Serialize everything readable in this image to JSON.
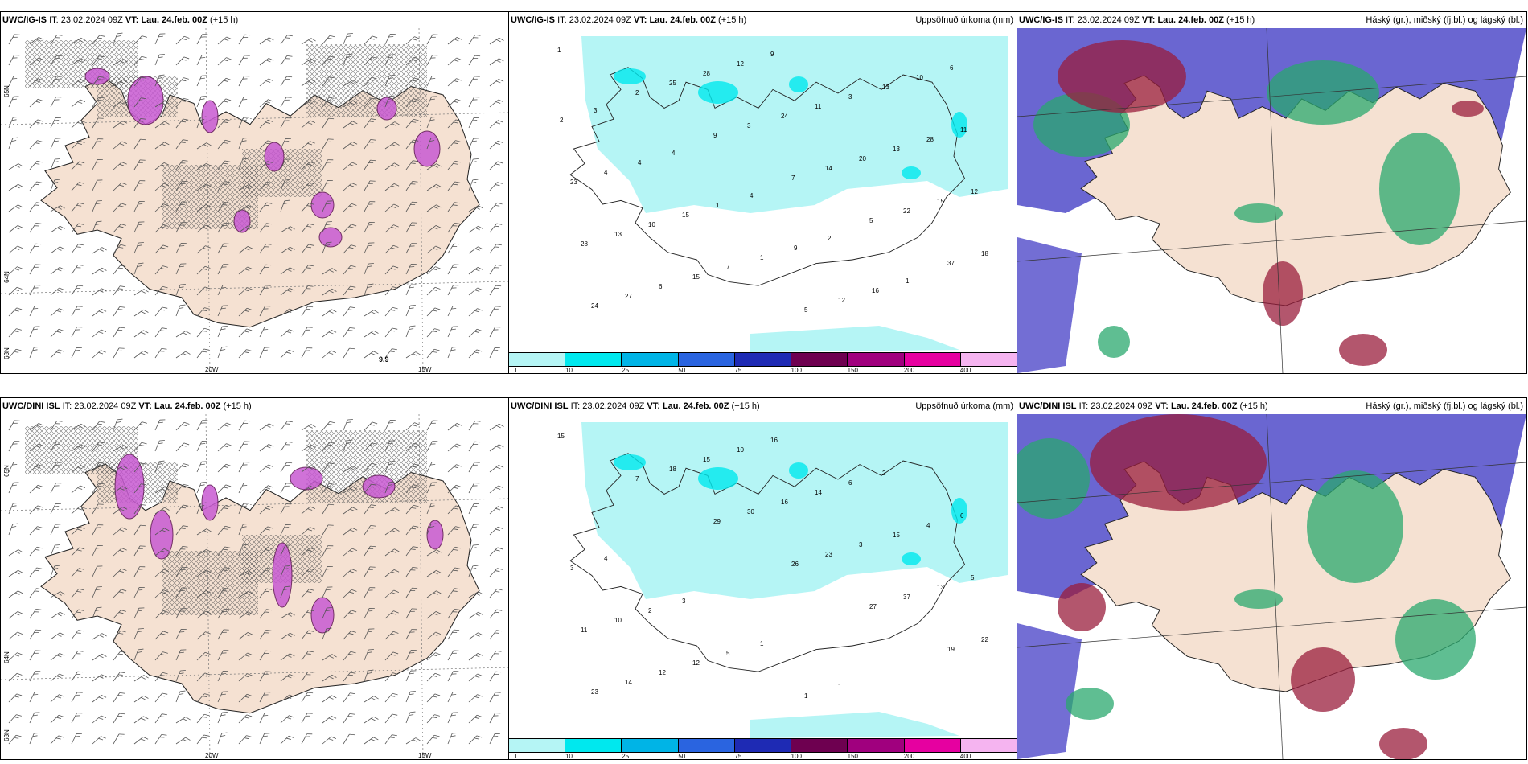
{
  "rows": [
    {
      "model": "UWC/IG-IS",
      "it_label": "IT:",
      "it": "23.02.2024 09Z",
      "vt_label": "VT:",
      "vt": "Lau. 24.feb. 00Z",
      "lead": "(+15 h)"
    },
    {
      "model": "UWC/DINI ISL",
      "it_label": "IT:",
      "it": "23.02.2024 09Z",
      "vt_label": "VT:",
      "vt": "Lau. 24.feb. 00Z",
      "lead": "(+15 h)"
    }
  ],
  "panels": {
    "precip_title": "Uppsöfnuð úrkoma (mm)",
    "cloud_title": "Háský (gr.), miðský (fj.bl.) og lágský (bl.)"
  },
  "wind_axes": {
    "lon1": "20W",
    "lon2": "15W",
    "lat_top": "65N",
    "lat_mid": "64N",
    "lat_bot": "63N"
  },
  "wind_map_top_extra": "9.9",
  "colorbar": {
    "ticks": [
      "1",
      "10",
      "25",
      "50",
      "75",
      "100",
      "150",
      "200",
      "400"
    ],
    "colors": [
      "#b5f5f5",
      "#00e8ee",
      "#00b4e6",
      "#2a64e0",
      "#1e2ab4",
      "#6e0050",
      "#a0007e",
      "#e600a0",
      "#f5b4f0"
    ]
  },
  "colors": {
    "land": "#f5e1d2",
    "precip_light": "#b5f5f5",
    "precip_mid": "#00e8ee",
    "cloud_blue": "#5a55cc",
    "cloud_green": "#2aa86e",
    "cloud_red": "#9a1e3c",
    "magenta": "#c85ad2"
  },
  "precip_labels_top": [
    "1",
    "2",
    "9",
    "7",
    "5",
    "37",
    "24",
    "25",
    "3",
    "14",
    "22",
    "18",
    "27",
    "28",
    "24",
    "20",
    "15",
    "28",
    "6",
    "12",
    "11",
    "13",
    "12",
    "13",
    "15",
    "9",
    "3",
    "28",
    "23",
    "10",
    "7",
    "5",
    "13",
    "11",
    "4",
    "15",
    "1",
    "12",
    "10",
    "2",
    "4",
    "1",
    "9",
    "16",
    "6",
    "3",
    "4",
    "4",
    "2",
    "1"
  ],
  "precip_labels_bottom": [
    "15",
    "7",
    "29",
    "26",
    "27",
    "19",
    "23",
    "18",
    "30",
    "23",
    "37",
    "22",
    "14",
    "15",
    "16",
    "3",
    "13",
    "11",
    "12",
    "10",
    "14",
    "15",
    "5",
    "10",
    "12",
    "16",
    "6",
    "4",
    "3",
    "2",
    "5",
    "1",
    "2",
    "6",
    "4",
    "3",
    "1",
    "1"
  ]
}
